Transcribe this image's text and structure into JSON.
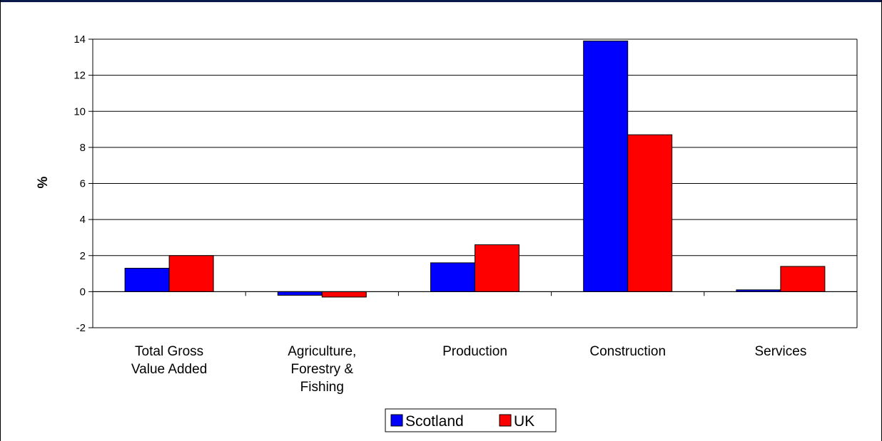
{
  "chart_data": {
    "type": "bar",
    "ylabel": "%",
    "ylim": [
      -2,
      14
    ],
    "yticks": [
      -2,
      0,
      2,
      4,
      6,
      8,
      10,
      12,
      14
    ],
    "grid": true,
    "legend_position": "bottom-center",
    "categories": [
      [
        "Total Gross",
        "Value Added"
      ],
      [
        "Agriculture,",
        "Forestry &",
        "Fishing"
      ],
      [
        "Production"
      ],
      [
        "Construction"
      ],
      [
        "Services"
      ]
    ],
    "series": [
      {
        "name": "Scotland",
        "color": "#0000ff",
        "values": [
          1.3,
          -0.2,
          1.6,
          13.9,
          0.1
        ]
      },
      {
        "name": "UK",
        "color": "#ff0000",
        "values": [
          2.0,
          -0.3,
          2.6,
          8.7,
          1.4
        ]
      }
    ]
  }
}
